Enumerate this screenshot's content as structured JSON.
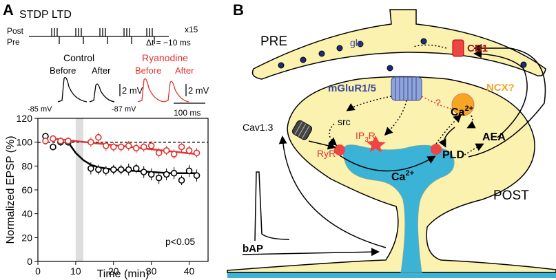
{
  "panel_a": {
    "label": "A",
    "protocol": {
      "title": "STDP LTD",
      "post": "Post",
      "pre": "Pre",
      "repeat": "x15",
      "delta_t": "Δt = −10 ms"
    },
    "traces": {
      "control": "Control",
      "ryanodine": "Ryanodine",
      "before_1": "Before",
      "after_1": "After",
      "before_2": "Before",
      "after_2": "After",
      "scale_1": "2 mV",
      "scale_2": "2 mV",
      "vm_1": "-85 mV",
      "vm_2": "-87 mV",
      "time_scale": "100 ms"
    }
  },
  "chart_data": {
    "type": "scatter",
    "x_label": "Time (min)",
    "y_label": "Normalized EPSP (%)",
    "annotation": "p<0.05",
    "x": [
      2,
      4,
      6,
      8,
      14,
      16,
      18,
      20,
      22,
      24,
      26,
      28,
      30,
      32,
      34,
      36,
      38,
      40,
      42
    ],
    "series": [
      {
        "color": "#000000",
        "values": [
          105,
          96,
          100,
          100,
          78,
          77,
          76,
          77,
          77,
          77,
          78,
          75,
          73,
          70,
          73,
          74,
          68,
          76,
          72
        ],
        "errors": [
          3,
          3,
          3,
          3,
          5,
          4,
          4,
          4,
          4,
          5,
          4,
          5,
          5,
          5,
          5,
          5,
          4,
          5,
          5
        ]
      },
      {
        "color": "#e0332f",
        "values": [
          101,
          103,
          101,
          101,
          100,
          104,
          97,
          96,
          96,
          97,
          95,
          96,
          97,
          91,
          93,
          90,
          96,
          93,
          91
        ],
        "errors": [
          3,
          3,
          3,
          3,
          4,
          4,
          4,
          4,
          4,
          4,
          4,
          4,
          4,
          4,
          4,
          4,
          4,
          4,
          4
        ]
      }
    ],
    "fits": [
      {
        "color": "#000000",
        "x": [
          8,
          10,
          12,
          14,
          16,
          20,
          25,
          30,
          35,
          42
        ],
        "values": [
          100,
          91,
          85,
          81,
          79,
          77,
          76,
          75,
          74,
          74
        ]
      },
      {
        "color": "#e0332f",
        "x": [
          4,
          42
        ],
        "values": [
          103,
          90
        ]
      }
    ],
    "reference_line": 100,
    "shaded_region": [
      10,
      12
    ],
    "xlim": [
      0,
      45
    ],
    "ylim": [
      0,
      120
    ],
    "xticks": [
      0,
      10,
      20,
      30,
      40
    ],
    "yticks": [
      0,
      20,
      40,
      60,
      80,
      100,
      120
    ]
  },
  "panel_b": {
    "label": "B",
    "pre": "PRE",
    "post": "POST",
    "glu": "glu",
    "cb1": "CB1",
    "mglur": "mGluR1/5",
    "ncx": "NCX?",
    "question": "?",
    "cav": "Cav1.3",
    "src": "src",
    "ip3r": {
      "main": "IP",
      "sub": "3",
      "end": "R"
    },
    "ryr": "RyR",
    "ca_1": {
      "main": "Ca",
      "sup": "2+"
    },
    "ca_2": {
      "main": "Ca",
      "sup": "2+"
    },
    "pld": "PLD",
    "aea": "AEA",
    "bap": "bAP"
  }
}
